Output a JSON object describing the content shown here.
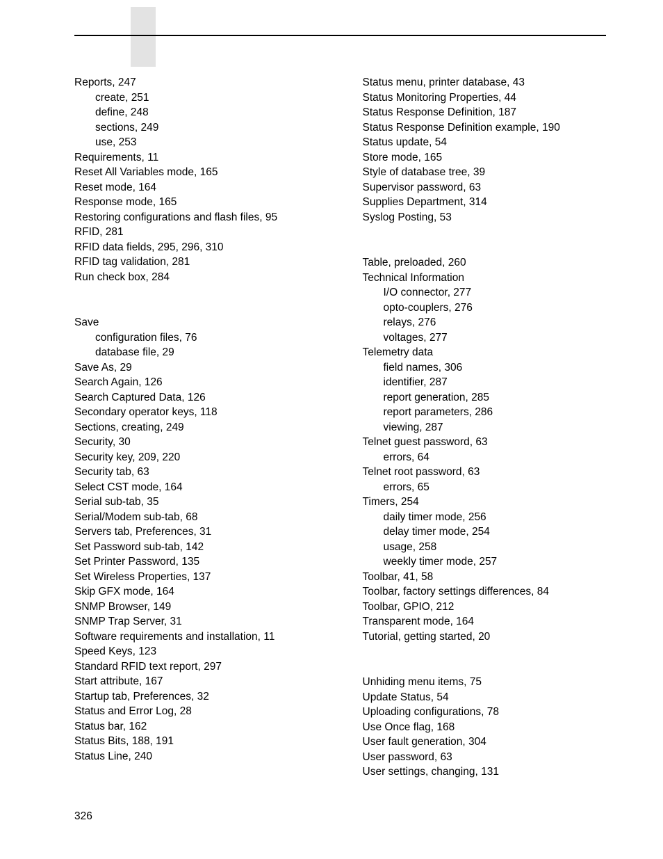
{
  "page_number": "326",
  "left_column": [
    {
      "text": "Reports, 247",
      "sub": false
    },
    {
      "text": "create, 251",
      "sub": true
    },
    {
      "text": "define, 248",
      "sub": true
    },
    {
      "text": "sections, 249",
      "sub": true
    },
    {
      "text": "use, 253",
      "sub": true
    },
    {
      "text": "Requirements, 11",
      "sub": false
    },
    {
      "text": "Reset All Variables mode, 165",
      "sub": false
    },
    {
      "text": "Reset mode, 164",
      "sub": false
    },
    {
      "text": "Response mode, 165",
      "sub": false
    },
    {
      "text": "Restoring configurations and flash files, 95",
      "sub": false
    },
    {
      "text": "RFID, 281",
      "sub": false
    },
    {
      "text": "RFID data fields, 295, 296, 310",
      "sub": false
    },
    {
      "text": "RFID tag validation, 281",
      "sub": false
    },
    {
      "text": "Run check box, 284",
      "sub": false
    },
    {
      "gap": true
    },
    {
      "text": "Save",
      "sub": false
    },
    {
      "text": "configuration files, 76",
      "sub": true
    },
    {
      "text": "database file, 29",
      "sub": true
    },
    {
      "text": "Save As, 29",
      "sub": false
    },
    {
      "text": "Search Again, 126",
      "sub": false
    },
    {
      "text": "Search Captured Data, 126",
      "sub": false
    },
    {
      "text": "Secondary operator keys, 118",
      "sub": false
    },
    {
      "text": "Sections, creating, 249",
      "sub": false
    },
    {
      "text": "Security, 30",
      "sub": false
    },
    {
      "text": "Security key, 209, 220",
      "sub": false
    },
    {
      "text": "Security tab, 63",
      "sub": false
    },
    {
      "text": "Select CST mode, 164",
      "sub": false
    },
    {
      "text": "Serial sub-tab, 35",
      "sub": false
    },
    {
      "text": "Serial/Modem sub-tab, 68",
      "sub": false
    },
    {
      "text": "Servers tab, Preferences, 31",
      "sub": false
    },
    {
      "text": "Set Password sub-tab, 142",
      "sub": false
    },
    {
      "text": "Set Printer Password, 135",
      "sub": false
    },
    {
      "text": "Set Wireless Properties, 137",
      "sub": false
    },
    {
      "text": "Skip GFX mode, 164",
      "sub": false
    },
    {
      "text": "SNMP Browser, 149",
      "sub": false
    },
    {
      "text": "SNMP Trap Server, 31",
      "sub": false
    },
    {
      "text": "Software requirements and installation, 11",
      "sub": false
    },
    {
      "text": "Speed Keys, 123",
      "sub": false
    },
    {
      "text": "Standard RFID text report, 297",
      "sub": false
    },
    {
      "text": "Start attribute, 167",
      "sub": false
    },
    {
      "text": "Startup tab, Preferences, 32",
      "sub": false
    },
    {
      "text": "Status and Error Log, 28",
      "sub": false
    },
    {
      "text": "Status bar, 162",
      "sub": false
    },
    {
      "text": "Status Bits, 188, 191",
      "sub": false
    },
    {
      "text": "Status Line, 240",
      "sub": false
    }
  ],
  "right_column": [
    {
      "text": "Status menu, printer database, 43",
      "sub": false
    },
    {
      "text": "Status Monitoring Properties, 44",
      "sub": false
    },
    {
      "text": "Status Response Definition, 187",
      "sub": false
    },
    {
      "text": "Status Response Definition example, 190",
      "sub": false
    },
    {
      "text": "Status update, 54",
      "sub": false
    },
    {
      "text": "Store mode, 165",
      "sub": false
    },
    {
      "text": "Style of database tree, 39",
      "sub": false
    },
    {
      "text": "Supervisor password, 63",
      "sub": false
    },
    {
      "text": "Supplies Department, 314",
      "sub": false
    },
    {
      "text": "Syslog Posting, 53",
      "sub": false
    },
    {
      "gap": true
    },
    {
      "text": "Table, preloaded, 260",
      "sub": false
    },
    {
      "text": "Technical Information",
      "sub": false
    },
    {
      "text": "I/O connector, 277",
      "sub": true
    },
    {
      "text": "opto-couplers, 276",
      "sub": true
    },
    {
      "text": "relays, 276",
      "sub": true
    },
    {
      "text": "voltages, 277",
      "sub": true
    },
    {
      "text": "Telemetry data",
      "sub": false
    },
    {
      "text": "field names, 306",
      "sub": true
    },
    {
      "text": "identifier, 287",
      "sub": true
    },
    {
      "text": "report generation, 285",
      "sub": true
    },
    {
      "text": "report parameters, 286",
      "sub": true
    },
    {
      "text": "viewing, 287",
      "sub": true
    },
    {
      "text": "Telnet guest password, 63",
      "sub": false
    },
    {
      "text": "errors, 64",
      "sub": true
    },
    {
      "text": "Telnet root password, 63",
      "sub": false
    },
    {
      "text": "errors, 65",
      "sub": true
    },
    {
      "text": "Timers, 254",
      "sub": false
    },
    {
      "text": "daily timer mode, 256",
      "sub": true
    },
    {
      "text": "delay timer mode, 254",
      "sub": true
    },
    {
      "text": "usage, 258",
      "sub": true
    },
    {
      "text": "weekly timer mode, 257",
      "sub": true
    },
    {
      "text": "Toolbar, 41, 58",
      "sub": false
    },
    {
      "text": "Toolbar, factory settings differences, 84",
      "sub": false
    },
    {
      "text": "Toolbar, GPIO, 212",
      "sub": false
    },
    {
      "text": "Transparent mode, 164",
      "sub": false
    },
    {
      "text": "Tutorial, getting started, 20",
      "sub": false
    },
    {
      "gap": true
    },
    {
      "text": "Unhiding menu items, 75",
      "sub": false
    },
    {
      "text": "Update Status, 54",
      "sub": false
    },
    {
      "text": "Uploading configurations, 78",
      "sub": false
    },
    {
      "text": "Use Once flag, 168",
      "sub": false
    },
    {
      "text": "User fault generation, 304",
      "sub": false
    },
    {
      "text": "User password, 63",
      "sub": false
    },
    {
      "text": "User settings, changing, 131",
      "sub": false
    }
  ]
}
